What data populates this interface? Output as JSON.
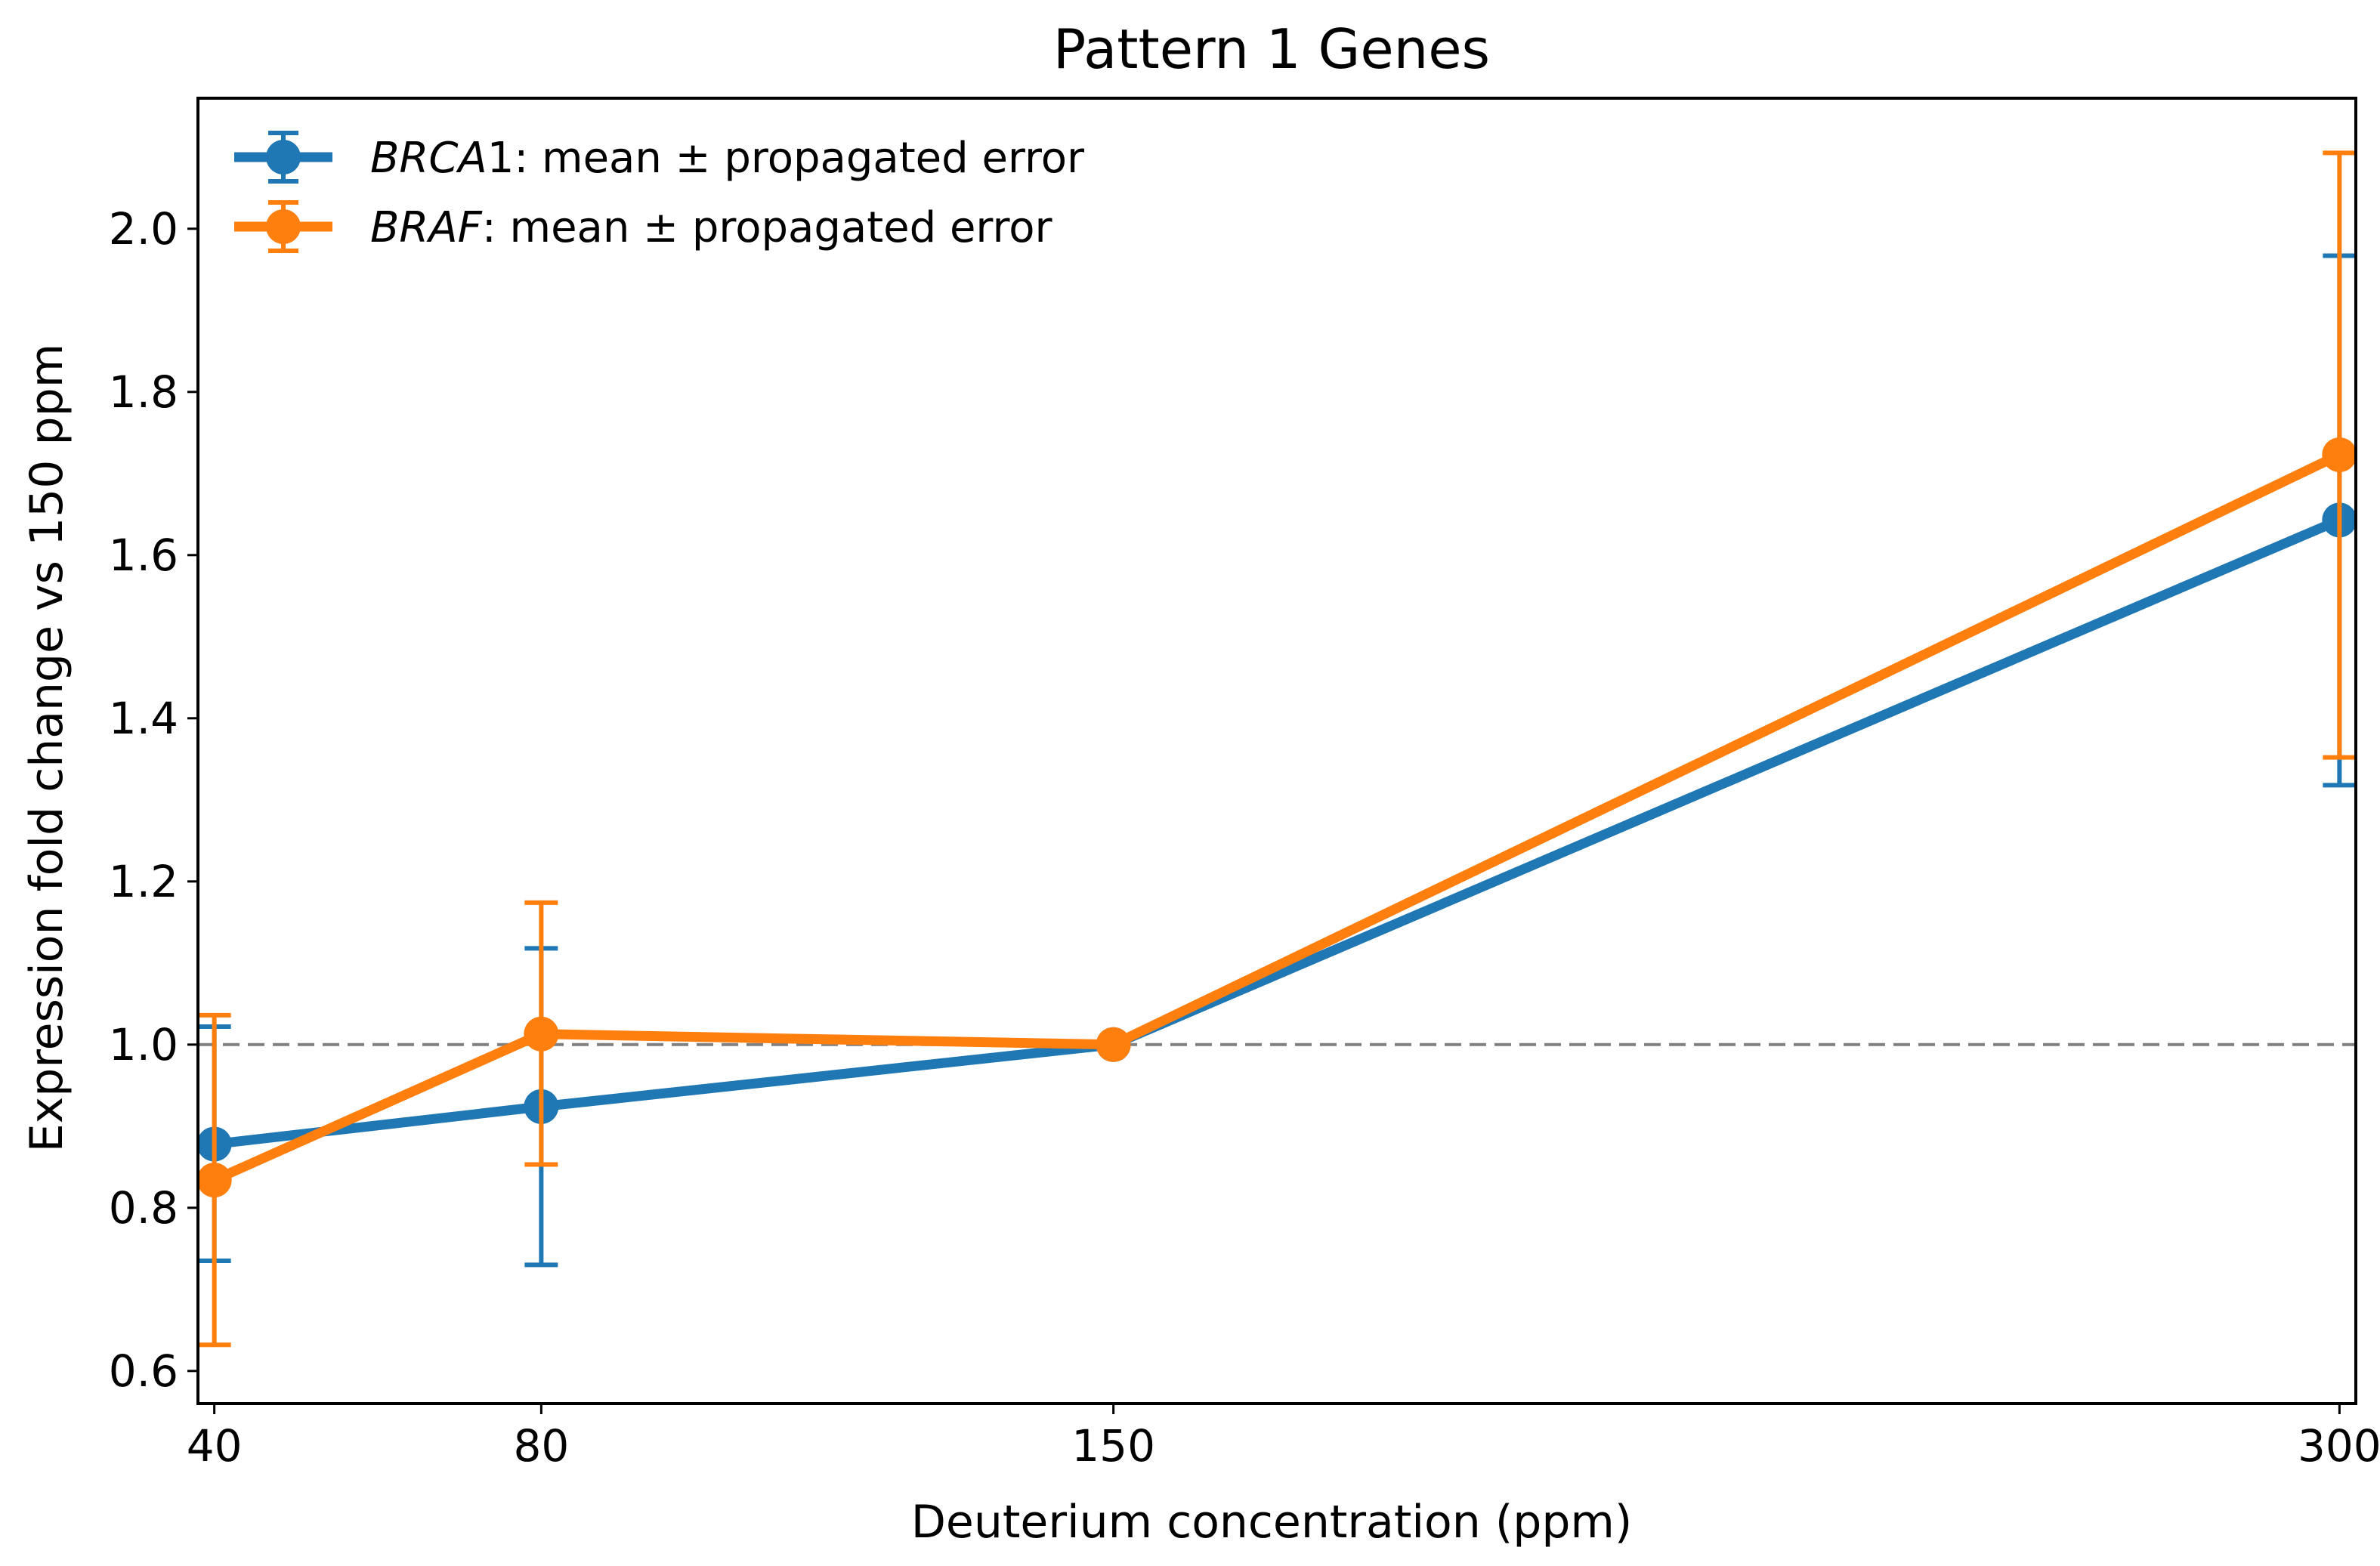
{
  "chart_data": {
    "type": "line",
    "title": "Pattern 1 Genes",
    "xlabel": "Deuterium concentration (ppm)",
    "ylabel": "Expression fold change vs 150 ppm",
    "x": [
      40,
      80,
      150,
      300
    ],
    "x_tick_labels": [
      "40",
      "80",
      "150",
      "300"
    ],
    "xlim": [
      38,
      302
    ],
    "ylim": [
      0.56,
      2.16
    ],
    "y_ticks": [
      0.6,
      0.8,
      1.0,
      1.2,
      1.4,
      1.6,
      1.8,
      2.0
    ],
    "y_tick_labels": [
      "0.6",
      "0.8",
      "1.0",
      "1.2",
      "1.4",
      "1.6",
      "1.8",
      "2.0"
    ],
    "reference_line": {
      "y": 1.0,
      "style": "dashed",
      "color": "#808080"
    },
    "grid": false,
    "legend_position": "top-left",
    "series": [
      {
        "name": "BRCA1: mean ± propagated error",
        "legend_italic": "BRCA",
        "legend_rest": "1: mean ±  propagated error",
        "color": "#1f77b4",
        "values": [
          0.878,
          0.924,
          1.0,
          1.643
        ],
        "err_low": [
          0.735,
          0.73,
          1.0,
          1.318
        ],
        "err_high": [
          1.022,
          1.118,
          1.0,
          1.967
        ]
      },
      {
        "name": "BRAF: mean ± propagated error",
        "legend_italic": "BRAF",
        "legend_rest": ": mean ±  propagated error",
        "color": "#ff7f0e",
        "values": [
          0.834,
          1.013,
          1.0,
          1.723
        ],
        "err_low": [
          0.632,
          0.853,
          1.0,
          1.352
        ],
        "err_high": [
          1.036,
          1.174,
          1.0,
          2.093
        ]
      }
    ]
  }
}
